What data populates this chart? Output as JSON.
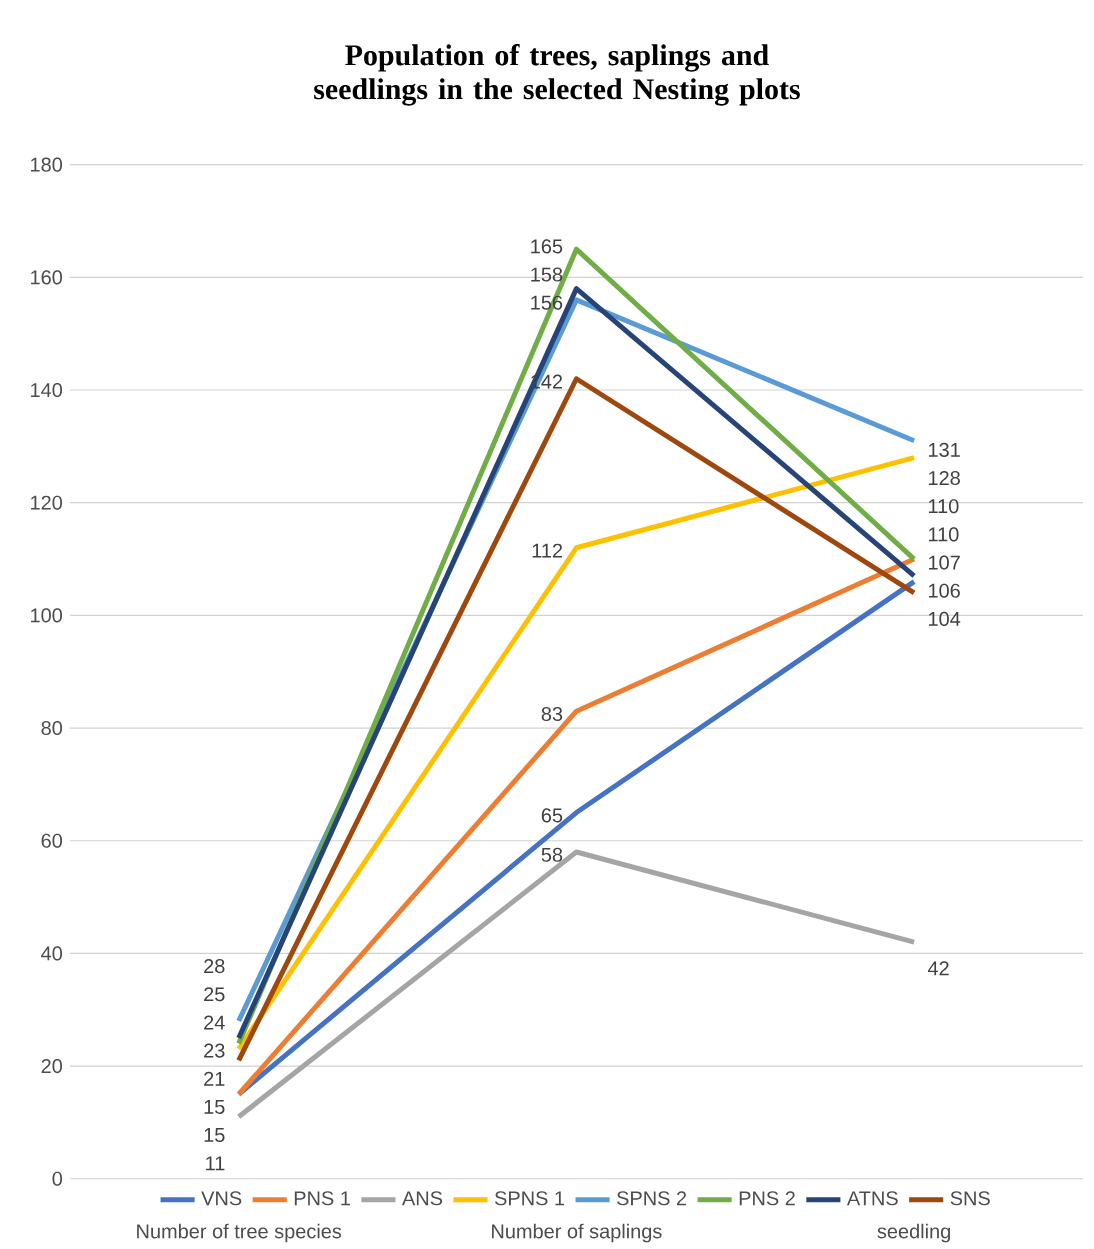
{
  "chart_data": {
    "type": "line",
    "title": "Population of trees, saplings and seedlings in the selected Nesting plots",
    "categories": [
      "Number of tree  species",
      "Number of saplings",
      "seedling"
    ],
    "series": [
      {
        "name": "VNS",
        "color": "#4472c4",
        "values": [
          15,
          65,
          106
        ]
      },
      {
        "name": "PNS 1",
        "color": "#ed7d31",
        "values": [
          15,
          83,
          110
        ]
      },
      {
        "name": "ANS",
        "color": "#a5a5a5",
        "values": [
          11,
          58,
          42
        ]
      },
      {
        "name": "SPNS 1",
        "color": "#ffc000",
        "values": [
          23,
          112,
          128
        ]
      },
      {
        "name": "SPNS 2",
        "color": "#5b9bd5",
        "values": [
          28,
          156,
          131
        ]
      },
      {
        "name": "PNS 2",
        "color": "#70ad47",
        "values": [
          24,
          165,
          110
        ]
      },
      {
        "name": "ATNS",
        "color": "#264478",
        "values": [
          25,
          158,
          107
        ]
      },
      {
        "name": "SNS",
        "color": "#9e480e",
        "values": [
          21,
          142,
          104
        ]
      }
    ],
    "ylim": [
      0,
      180
    ],
    "yticks": [
      0,
      20,
      40,
      60,
      80,
      100,
      120,
      140,
      160,
      180
    ],
    "grid": "y",
    "legend": "bottom",
    "marker": "none",
    "line_style": "solid",
    "data_labels": true
  }
}
